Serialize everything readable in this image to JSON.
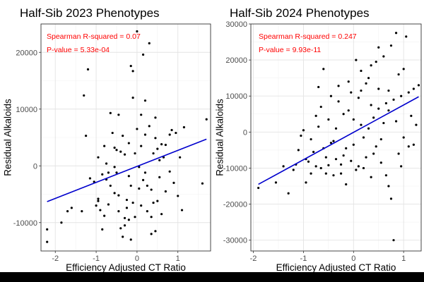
{
  "chart_data": [
    {
      "type": "scatter",
      "title": "Half-Sib 2023 Phenotypes",
      "xlabel": "Efficiency Adjusted CT Ratio",
      "ylabel": "Residual Alkaloids",
      "xlim": [
        -2.35,
        1.8
      ],
      "ylim": [
        -15000,
        25000
      ],
      "xticks": [
        -2,
        -1,
        0,
        1
      ],
      "xtick_labels": [
        "-2",
        "-1",
        "0",
        "1"
      ],
      "yticks": [
        -10000,
        0,
        10000,
        20000
      ],
      "ytick_labels": [
        "-10000",
        "0",
        "10000",
        "20000"
      ],
      "grid": true,
      "annotations": [
        "Spearman R-squared =  0.07",
        "P-value =  5.33e-04"
      ],
      "annotation_color": "#ff0000",
      "point_color": "#000000",
      "line_color": "#0000cd",
      "trend_line": {
        "x": [
          -2.2,
          1.7
        ],
        "y": [
          -6300,
          4700
        ]
      },
      "points": [
        [
          -2.2,
          -11200
        ],
        [
          -2.2,
          -13400
        ],
        [
          -1.85,
          -10000
        ],
        [
          -1.7,
          -8000
        ],
        [
          -1.6,
          -7400
        ],
        [
          -1.35,
          -8000
        ],
        [
          -1.3,
          12400
        ],
        [
          -1.25,
          5300
        ],
        [
          -1.2,
          17000
        ],
        [
          -1.15,
          -2200
        ],
        [
          -1.05,
          -2800
        ],
        [
          -1.0,
          -7000
        ],
        [
          -0.95,
          -6200
        ],
        [
          -0.95,
          -5800
        ],
        [
          -0.9,
          -7800
        ],
        [
          -0.85,
          -11200
        ],
        [
          -0.8,
          -8800
        ],
        [
          -0.75,
          -2400
        ],
        [
          -0.7,
          -6800
        ],
        [
          -0.65,
          9300
        ],
        [
          -0.6,
          5800
        ],
        [
          -0.55,
          3200
        ],
        [
          -0.5,
          -1200
        ],
        [
          -0.45,
          -5200
        ],
        [
          -0.4,
          2500
        ],
        [
          -0.35,
          5300
        ],
        [
          -0.3,
          -9200
        ],
        [
          -0.25,
          -7400
        ],
        [
          -0.2,
          -1800
        ],
        [
          -0.15,
          17600
        ],
        [
          -0.1,
          16700
        ],
        [
          -0.05,
          2200
        ],
        [
          0.0,
          23700
        ],
        [
          0.05,
          -200
        ],
        [
          0.1,
          3500
        ],
        [
          0.15,
          19600
        ],
        [
          0.2,
          -1200
        ],
        [
          0.25,
          -8000
        ],
        [
          0.3,
          21600
        ],
        [
          0.35,
          -4200
        ],
        [
          0.4,
          2200
        ],
        [
          0.45,
          4900
        ],
        [
          0.5,
          -6200
        ],
        [
          0.55,
          1000
        ],
        [
          0.6,
          3800
        ],
        [
          0.7,
          3700
        ],
        [
          0.8,
          5500
        ],
        [
          0.85,
          6300
        ],
        [
          0.95,
          5800
        ],
        [
          1.0,
          -5300
        ],
        [
          1.1,
          -7800
        ],
        [
          1.15,
          6800
        ],
        [
          1.6,
          -3100
        ],
        [
          1.7,
          8200
        ],
        [
          -0.95,
          1500
        ],
        [
          -0.85,
          -1500
        ],
        [
          -0.75,
          400
        ],
        [
          -0.65,
          -3500
        ],
        [
          -0.55,
          -4800
        ],
        [
          -0.5,
          2800
        ],
        [
          -0.45,
          -8000
        ],
        [
          -0.4,
          -11000
        ],
        [
          -0.35,
          -12500
        ],
        [
          -0.3,
          -10500
        ],
        [
          -0.25,
          -6000
        ],
        [
          -0.2,
          4000
        ],
        [
          -0.15,
          -3500
        ],
        [
          -0.1,
          -6500
        ],
        [
          -0.05,
          -9000
        ],
        [
          0.0,
          6500
        ],
        [
          0.05,
          -4000
        ],
        [
          0.1,
          9000
        ],
        [
          0.15,
          -2500
        ],
        [
          0.2,
          5500
        ],
        [
          0.25,
          -3500
        ],
        [
          0.3,
          7000
        ],
        [
          0.35,
          -9000
        ],
        [
          0.4,
          -6500
        ],
        [
          0.45,
          -11500
        ],
        [
          0.5,
          3000
        ],
        [
          0.55,
          -2000
        ],
        [
          0.6,
          -8500
        ],
        [
          0.65,
          1500
        ],
        [
          0.7,
          -4500
        ],
        [
          0.8,
          -1000
        ],
        [
          0.9,
          -3000
        ],
        [
          1.05,
          1500
        ],
        [
          -0.15,
          -13000
        ],
        [
          -0.3,
          2000
        ],
        [
          -0.7,
          -1200
        ],
        [
          -0.8,
          3500
        ],
        [
          -0.2,
          -9500
        ],
        [
          0.1,
          -7000
        ],
        [
          0.35,
          -12000
        ],
        [
          -0.55,
          -200
        ],
        [
          -0.45,
          9000
        ],
        [
          -0.1,
          12000
        ],
        [
          0.2,
          11500
        ],
        [
          0.45,
          8500
        ]
      ]
    },
    {
      "type": "scatter",
      "title": "Half-Sib 2024 Phenotypes",
      "xlabel": "Efficiency Adjusted CT Ratio",
      "ylabel": "Residual Alkaloids",
      "xlim": [
        -2.05,
        1.35
      ],
      "ylim": [
        -33000,
        30000
      ],
      "xticks": [
        -2,
        -1,
        0,
        1
      ],
      "xtick_labels": [
        "-2",
        "-1",
        "0",
        "1"
      ],
      "yticks": [
        -30000,
        -20000,
        -10000,
        0,
        10000,
        20000,
        30000
      ],
      "ytick_labels": [
        "-30000",
        "-20000",
        "-10000",
        "0",
        "10000",
        "20000",
        "30000"
      ],
      "grid": true,
      "annotations": [
        "Spearman R-squared =  0.247",
        "P-value =  9.93e-11"
      ],
      "annotation_color": "#ff0000",
      "point_color": "#000000",
      "line_color": "#0000cd",
      "trend_line": {
        "x": [
          -1.9,
          1.3
        ],
        "y": [
          -14500,
          9800
        ]
      },
      "points": [
        [
          -1.9,
          -15500
        ],
        [
          -1.55,
          -14000
        ],
        [
          -1.4,
          -9500
        ],
        [
          -1.3,
          -17000
        ],
        [
          -1.2,
          -10500
        ],
        [
          -1.1,
          -5000
        ],
        [
          -1.05,
          -1000
        ],
        [
          -1.0,
          500
        ],
        [
          -0.95,
          -14000
        ],
        [
          -0.9,
          -8200
        ],
        [
          -0.85,
          -11500
        ],
        [
          -0.8,
          -5500
        ],
        [
          -0.75,
          -9500
        ],
        [
          -0.7,
          12500
        ],
        [
          -0.65,
          -10000
        ],
        [
          -0.6,
          17500
        ],
        [
          -0.55,
          -7000
        ],
        [
          -0.5,
          -9200
        ],
        [
          -0.45,
          -3000
        ],
        [
          -0.4,
          -2500
        ],
        [
          -0.35,
          -7500
        ],
        [
          -0.3,
          12800
        ],
        [
          -0.25,
          -11500
        ],
        [
          -0.2,
          5000
        ],
        [
          -0.15,
          -14500
        ],
        [
          -0.1,
          14000
        ],
        [
          -0.05,
          -8000
        ],
        [
          0.0,
          3500
        ],
        [
          0.05,
          20000
        ],
        [
          0.1,
          -9500
        ],
        [
          0.15,
          2000
        ],
        [
          0.2,
          -10000
        ],
        [
          0.25,
          13500
        ],
        [
          0.3,
          1000
        ],
        [
          0.35,
          18500
        ],
        [
          0.4,
          4000
        ],
        [
          0.45,
          -4000
        ],
        [
          0.5,
          6500
        ],
        [
          0.55,
          -8500
        ],
        [
          0.6,
          21000
        ],
        [
          0.65,
          -12000
        ],
        [
          0.7,
          6000
        ],
        [
          0.75,
          24000
        ],
        [
          0.8,
          -30000
        ],
        [
          0.85,
          27500
        ],
        [
          0.9,
          -6000
        ],
        [
          0.95,
          10000
        ],
        [
          1.0,
          17500
        ],
        [
          1.05,
          26500
        ],
        [
          1.1,
          -4000
        ],
        [
          1.15,
          4500
        ],
        [
          1.2,
          12000
        ],
        [
          1.25,
          2000
        ],
        [
          1.3,
          13000
        ],
        [
          -0.85,
          -2000
        ],
        [
          -0.7,
          1500
        ],
        [
          -0.6,
          -4500
        ],
        [
          -0.5,
          3500
        ],
        [
          -0.4,
          -12000
        ],
        [
          -0.3,
          8500
        ],
        [
          -0.2,
          -6500
        ],
        [
          -0.1,
          6000
        ],
        [
          0.0,
          -3500
        ],
        [
          0.1,
          9500
        ],
        [
          0.2,
          -1500
        ],
        [
          0.3,
          15000
        ],
        [
          0.4,
          -6000
        ],
        [
          0.5,
          12000
        ],
        [
          0.6,
          2500
        ],
        [
          0.7,
          -15000
        ],
        [
          0.8,
          9000
        ],
        [
          0.9,
          16000
        ],
        [
          1.0,
          -1500
        ],
        [
          1.1,
          11000
        ],
        [
          -0.95,
          -7500
        ],
        [
          -0.75,
          4500
        ],
        [
          -0.55,
          -11500
        ],
        [
          -0.35,
          1000
        ],
        [
          -0.15,
          -4500
        ],
        [
          0.05,
          -10500
        ],
        [
          0.15,
          11500
        ],
        [
          0.25,
          -7000
        ],
        [
          0.35,
          7500
        ],
        [
          0.45,
          19500
        ],
        [
          0.55,
          -2000
        ],
        [
          0.65,
          8000
        ],
        [
          0.75,
          -18500
        ],
        [
          0.85,
          3000
        ],
        [
          0.95,
          -9500
        ],
        [
          -1.15,
          -9000
        ],
        [
          -0.65,
          7000
        ],
        [
          -0.45,
          10000
        ],
        [
          -0.25,
          -9000
        ],
        [
          0.15,
          17000
        ],
        [
          0.5,
          23500
        ],
        [
          0.7,
          11500
        ],
        [
          1.2,
          -3500
        ],
        [
          -0.05,
          11000
        ],
        [
          0.35,
          -12500
        ]
      ]
    }
  ]
}
